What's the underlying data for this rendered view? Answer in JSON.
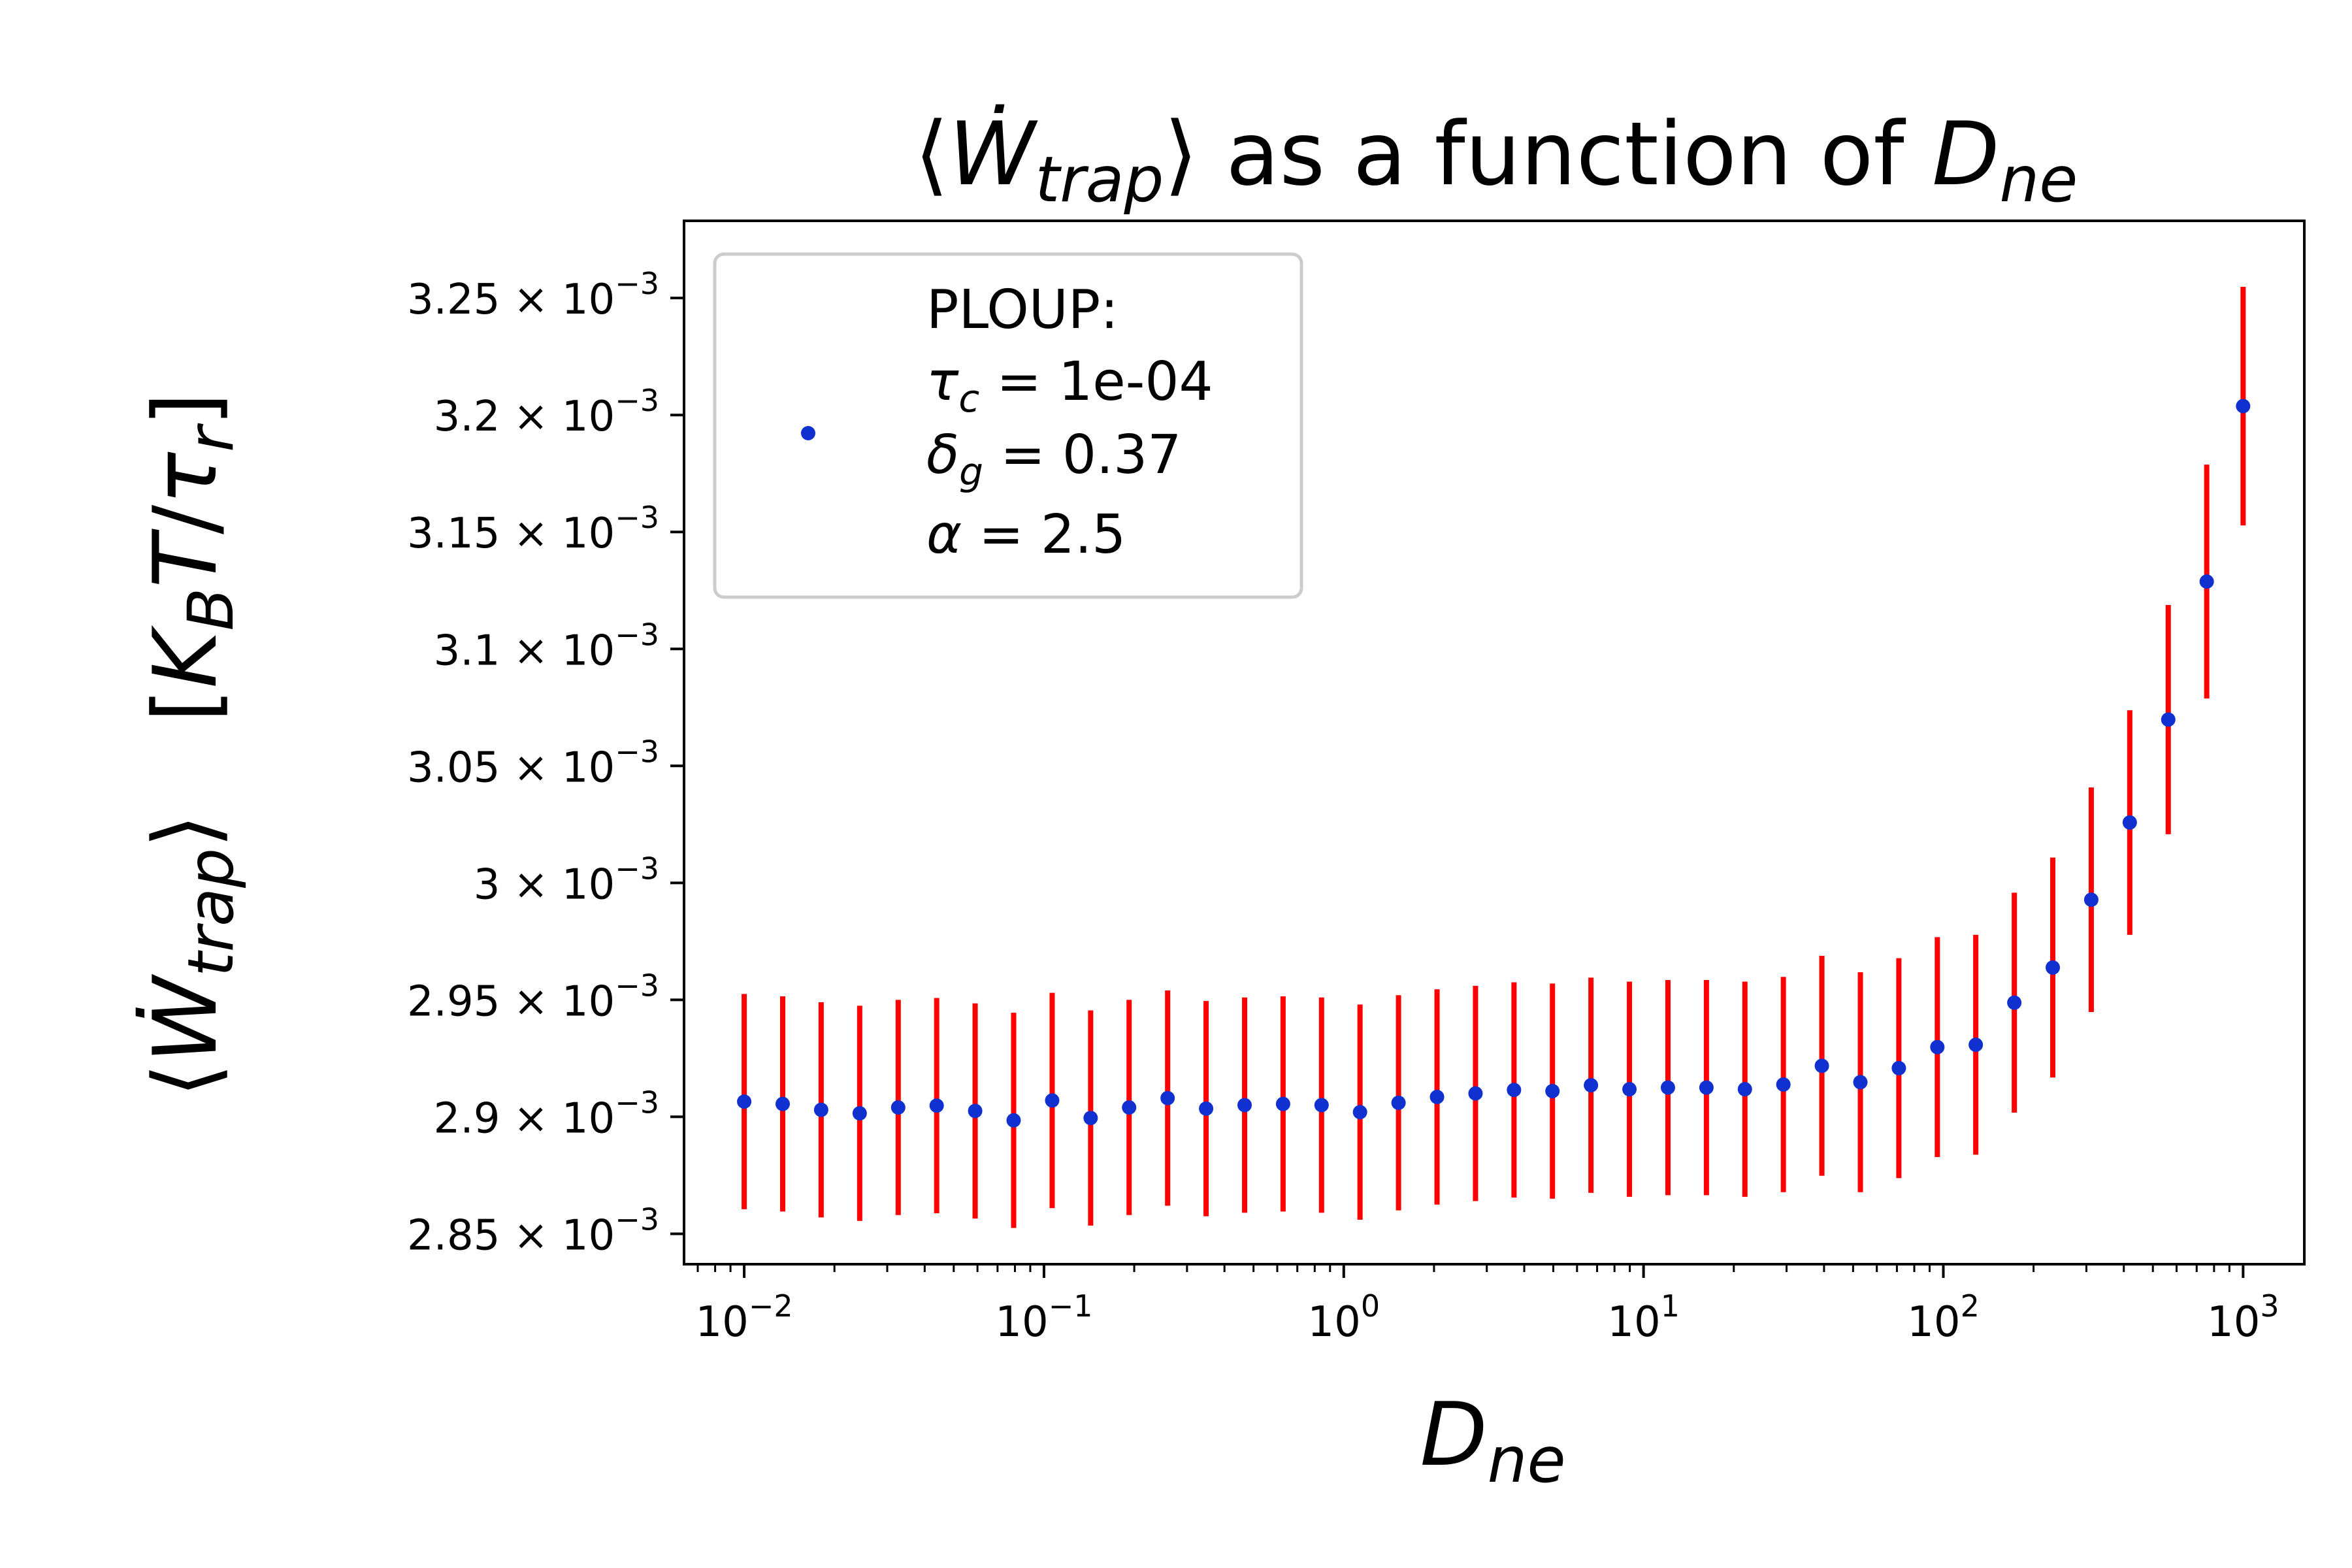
{
  "chart_data": {
    "type": "scatter",
    "title": {
      "pre": "⟨",
      "W": "Ẇ",
      "sub": "trap",
      "post": "⟩ as a function of ",
      "D": "D",
      "Dsub": "ne"
    },
    "xlabel": {
      "D": "D",
      "sub": "ne"
    },
    "ylabel": {
      "pre": "⟨",
      "W": "Ẇ",
      "sub": "trap",
      "post": "⟩",
      "unit_open": "[",
      "K": "K",
      "Ksub": "B",
      "T": "T",
      "slash": "/",
      "tau": "τ",
      "tausub": "r",
      "unit_close": "]"
    },
    "x_scale": "log",
    "xlim": [
      0.0063,
      1600
    ],
    "ylim": [
      0.002837,
      0.003283
    ],
    "x_ticks": [
      {
        "value": 0.01,
        "base": "10",
        "exp": "−2"
      },
      {
        "value": 0.1,
        "base": "10",
        "exp": "−1"
      },
      {
        "value": 1,
        "base": "10",
        "exp": "0"
      },
      {
        "value": 10,
        "base": "10",
        "exp": "1"
      },
      {
        "value": 100,
        "base": "10",
        "exp": "2"
      },
      {
        "value": 1000,
        "base": "10",
        "exp": "3"
      }
    ],
    "y_ticks": [
      {
        "value": 0.00325,
        "mant": "3.25",
        "exp": "−3"
      },
      {
        "value": 0.0032,
        "mant": "3.2",
        "exp": "−3"
      },
      {
        "value": 0.00315,
        "mant": "3.15",
        "exp": "−3"
      },
      {
        "value": 0.0031,
        "mant": "3.1",
        "exp": "−3"
      },
      {
        "value": 0.00305,
        "mant": "3.05",
        "exp": "−3"
      },
      {
        "value": 0.003,
        "mant": "3",
        "exp": "−3"
      },
      {
        "value": 0.00295,
        "mant": "2.95",
        "exp": "−3"
      },
      {
        "value": 0.0029,
        "mant": "2.9",
        "exp": "−3"
      },
      {
        "value": 0.00285,
        "mant": "2.85",
        "exp": "−3"
      }
    ],
    "series": [
      {
        "name": "PLOUP:",
        "point_color": "#1030d0",
        "errorbar_color": "#ff0000",
        "x": [
          0.01,
          0.01344,
          0.01806,
          0.02428,
          0.03264,
          0.04386,
          0.05894,
          0.07921,
          0.1065,
          0.1431,
          0.1923,
          0.2585,
          0.3474,
          0.4669,
          0.6274,
          0.8432,
          1.133,
          1.523,
          2.047,
          2.751,
          3.697,
          4.968,
          6.677,
          8.974,
          12.06,
          16.21,
          21.78,
          29.27,
          39.34,
          52.88,
          71.06,
          95.5,
          128.3,
          172.5,
          231.8,
          311.5,
          418.7,
          562.7,
          756.2,
          1000
        ],
        "y": [
          0.0029065,
          0.0029055,
          0.002903,
          0.0029015,
          0.002904,
          0.0029048,
          0.0029025,
          0.0028985,
          0.002907,
          0.0028995,
          0.002904,
          0.002908,
          0.0029035,
          0.002905,
          0.0029055,
          0.002905,
          0.002902,
          0.002906,
          0.0029085,
          0.00291,
          0.0029115,
          0.002911,
          0.0029135,
          0.0029118,
          0.0029125,
          0.0029125,
          0.0029118,
          0.0029138,
          0.0029218,
          0.0029148,
          0.0029208,
          0.0029298,
          0.0029308,
          0.0029488,
          0.0029638,
          0.0029928,
          0.0030258,
          0.0030698,
          0.0031288,
          0.0032038
        ],
        "yerr": [
          4.6e-05,
          4.6e-05,
          4.6e-05,
          4.6e-05,
          4.6e-05,
          4.6e-05,
          4.6e-05,
          4.6e-05,
          4.6e-05,
          4.6e-05,
          4.6e-05,
          4.6e-05,
          4.6e-05,
          4.6e-05,
          4.6e-05,
          4.6e-05,
          4.6e-05,
          4.6e-05,
          4.6e-05,
          4.6e-05,
          4.6e-05,
          4.6e-05,
          4.6e-05,
          4.6e-05,
          4.6e-05,
          4.6e-05,
          4.6e-05,
          4.6e-05,
          4.7e-05,
          4.7e-05,
          4.7e-05,
          4.7e-05,
          4.7e-05,
          4.7e-05,
          4.7e-05,
          4.8e-05,
          4.8e-05,
          4.9e-05,
          5e-05,
          5.1e-05
        ]
      }
    ],
    "legend": {
      "placement": "upper-left",
      "lines": [
        {
          "text": "PLOUP:"
        },
        {
          "sym": "τ",
          "sub": "c",
          "rest": " = 1e-04"
        },
        {
          "sym": "δ",
          "sub": "g",
          "rest": " = 0.37"
        },
        {
          "sym": "α",
          "sub": "",
          "rest": " = 2.5"
        }
      ]
    }
  }
}
